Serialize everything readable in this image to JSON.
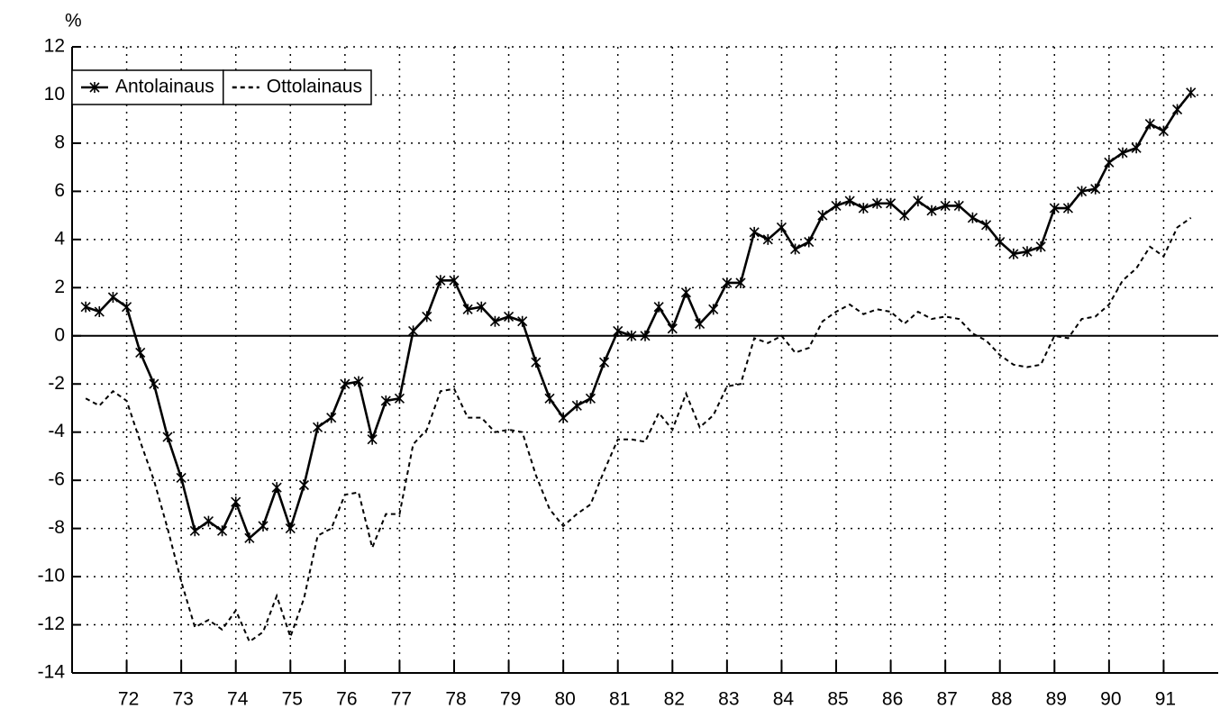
{
  "chart_data": {
    "type": "line",
    "ylabel": "%",
    "x": [
      71.25,
      71.5,
      71.75,
      72,
      72.25,
      72.5,
      72.75,
      73,
      73.25,
      73.5,
      73.75,
      74,
      74.25,
      74.5,
      74.75,
      75,
      75.25,
      75.5,
      75.75,
      76,
      76.25,
      76.5,
      76.75,
      77,
      77.25,
      77.5,
      77.75,
      78,
      78.25,
      78.5,
      78.75,
      79,
      79.25,
      79.5,
      79.75,
      80,
      80.25,
      80.5,
      80.75,
      81,
      81.25,
      81.5,
      81.75,
      82,
      82.25,
      82.5,
      82.75,
      83,
      83.25,
      83.5,
      83.75,
      84,
      84.25,
      84.5,
      84.75,
      85,
      85.25,
      85.5,
      85.75,
      86,
      86.25,
      86.5,
      86.75,
      87,
      87.25,
      87.5,
      87.75,
      88,
      88.25,
      88.5,
      88.75,
      89,
      89.25,
      89.5,
      89.75,
      90,
      90.25,
      90.5,
      90.75,
      91,
      91.25,
      91.5
    ],
    "series": [
      {
        "name": "Antolainaus",
        "color": "#000000",
        "style": "solid",
        "marker": "star",
        "values": [
          1.2,
          1.0,
          1.6,
          1.2,
          -0.7,
          -2.0,
          -4.2,
          -5.9,
          -8.1,
          -7.7,
          -8.1,
          -6.9,
          -8.4,
          -7.9,
          -6.3,
          -8.0,
          -6.2,
          -3.8,
          -3.4,
          -2.0,
          -1.9,
          -4.3,
          -2.7,
          -2.6,
          0.2,
          0.8,
          2.3,
          2.3,
          1.1,
          1.2,
          0.6,
          0.8,
          0.6,
          -1.1,
          -2.6,
          -3.4,
          -2.9,
          -2.6,
          -1.1,
          0.2,
          0.0,
          0.0,
          1.2,
          0.3,
          1.8,
          0.5,
          1.1,
          2.2,
          2.2,
          4.3,
          4.0,
          4.5,
          3.6,
          3.9,
          5.0,
          5.4,
          5.6,
          5.3,
          5.5,
          5.5,
          5.0,
          5.6,
          5.2,
          5.4,
          5.4,
          4.9,
          4.6,
          3.9,
          3.4,
          3.5,
          3.7,
          5.3,
          5.3,
          6.0,
          6.1,
          7.2,
          7.6,
          7.8,
          8.8,
          8.5,
          9.4,
          10.1
        ]
      },
      {
        "name": "Ottolainaus",
        "color": "#000000",
        "style": "dashed",
        "values": [
          -2.6,
          -2.9,
          -2.3,
          -2.7,
          -4.4,
          -6.0,
          -8.0,
          -10.2,
          -12.1,
          -11.8,
          -12.2,
          -11.4,
          -12.7,
          -12.3,
          -10.8,
          -12.5,
          -10.9,
          -8.3,
          -8.0,
          -6.6,
          -6.5,
          -8.8,
          -7.4,
          -7.4,
          -4.5,
          -3.9,
          -2.3,
          -2.2,
          -3.4,
          -3.4,
          -4.0,
          -3.9,
          -4.0,
          -5.8,
          -7.2,
          -7.9,
          -7.4,
          -7.0,
          -5.6,
          -4.3,
          -4.3,
          -4.4,
          -3.2,
          -3.9,
          -2.4,
          -3.8,
          -3.3,
          -2.1,
          -2.0,
          -0.1,
          -0.3,
          0.0,
          -0.7,
          -0.5,
          0.6,
          1.0,
          1.3,
          0.9,
          1.1,
          1.0,
          0.5,
          1.0,
          0.7,
          0.8,
          0.7,
          0.1,
          -0.2,
          -0.8,
          -1.2,
          -1.3,
          -1.2,
          0.0,
          -0.1,
          0.7,
          0.8,
          1.3,
          2.3,
          2.8,
          3.7,
          3.3,
          4.5,
          4.9
        ]
      }
    ],
    "xlim": [
      71,
      92
    ],
    "xticks": [
      72,
      73,
      74,
      75,
      76,
      77,
      78,
      79,
      80,
      81,
      82,
      83,
      84,
      85,
      86,
      87,
      88,
      89,
      90,
      91
    ],
    "ylim": [
      -14,
      12
    ],
    "yticks": [
      -14,
      -12,
      -10,
      -8,
      -6,
      -4,
      -2,
      0,
      2,
      4,
      6,
      8,
      10,
      12
    ],
    "grid": true,
    "legend": "upper left"
  }
}
